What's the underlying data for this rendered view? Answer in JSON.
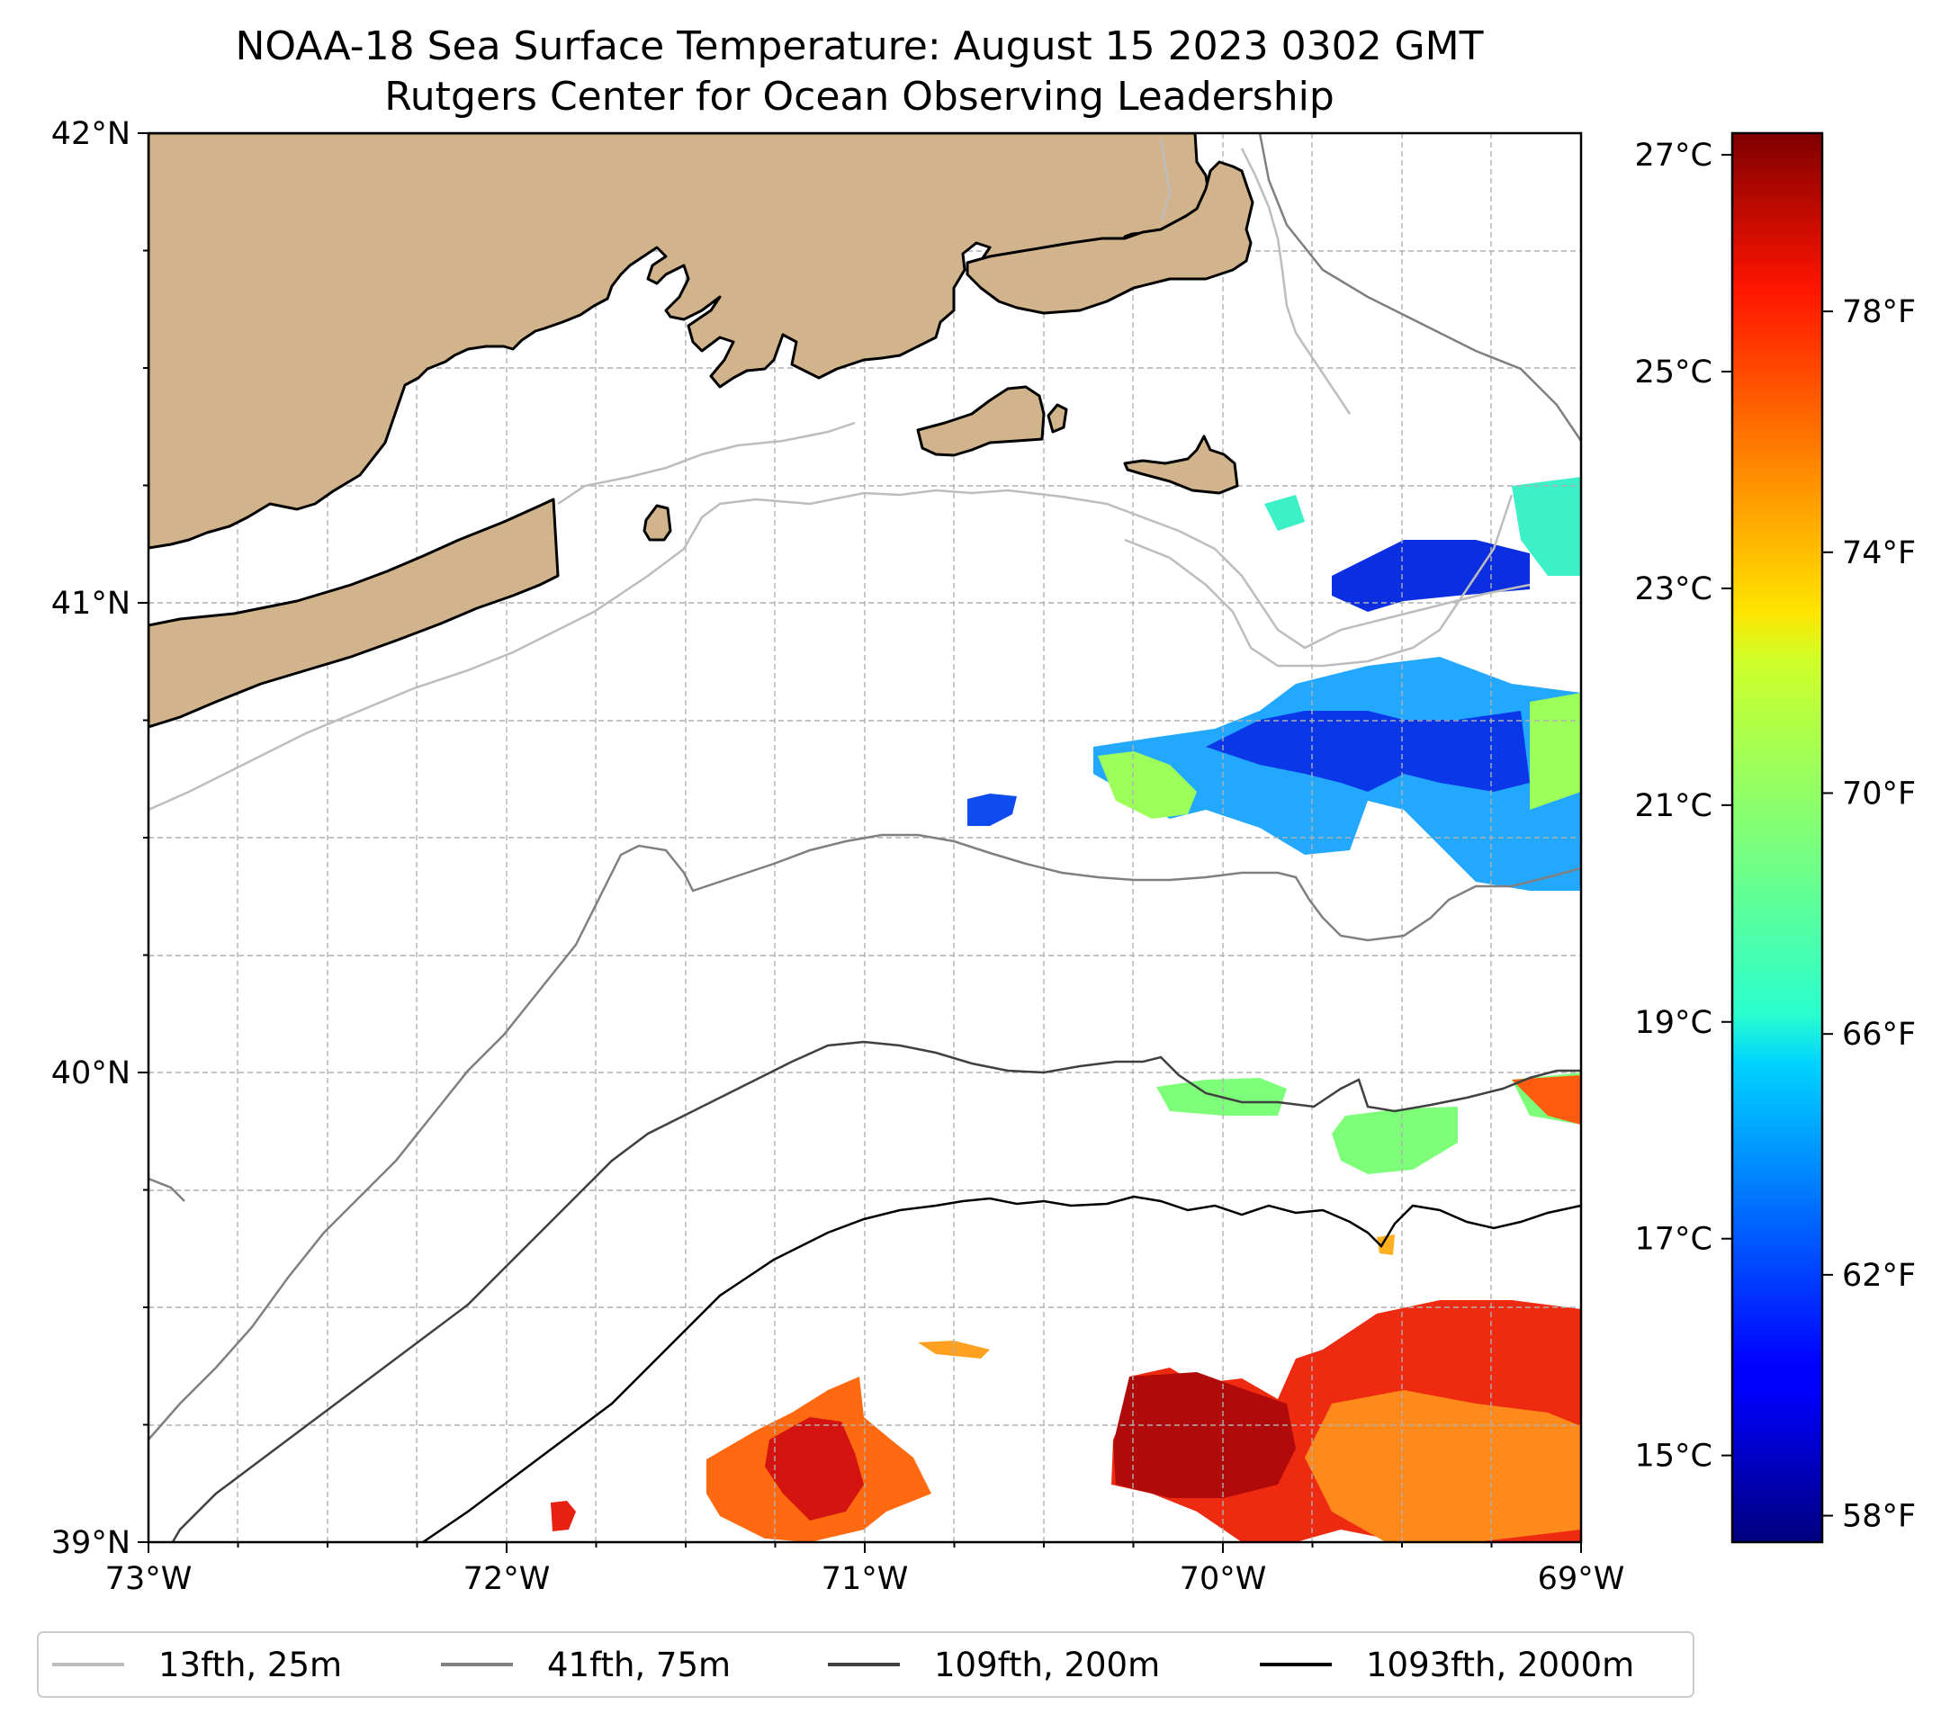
{
  "title": {
    "line1": "NOAA-18 Sea Surface Temperature: August 15 2023 0302 GMT",
    "line2": "Rutgers Center for Ocean Observing Leadership"
  },
  "map": {
    "lon_range": [
      -73,
      -69
    ],
    "lat_range": [
      39,
      42
    ],
    "lon_ticks": [
      {
        "value": -73,
        "label": "73°W"
      },
      {
        "value": -72,
        "label": "72°W"
      },
      {
        "value": -71,
        "label": "71°W"
      },
      {
        "value": -70,
        "label": "70°W"
      },
      {
        "value": -69,
        "label": "69°W"
      }
    ],
    "lat_ticks": [
      {
        "value": 42,
        "label": "42°N"
      },
      {
        "value": 41,
        "label": "41°N"
      },
      {
        "value": 40,
        "label": "40°N"
      },
      {
        "value": 39,
        "label": "39°N"
      }
    ],
    "gridlines": true,
    "land_color": "#d2b48c",
    "coastline_color": "#000000"
  },
  "colorbar": {
    "colormap": "jet",
    "celsius_range": [
      14.2,
      27.2
    ],
    "celsius_ticks": [
      {
        "value": 27,
        "label": "27°C"
      },
      {
        "value": 25,
        "label": "25°C"
      },
      {
        "value": 23,
        "label": "23°C"
      },
      {
        "value": 21,
        "label": "21°C"
      },
      {
        "value": 19,
        "label": "19°C"
      },
      {
        "value": 17,
        "label": "17°C"
      },
      {
        "value": 15,
        "label": "15°C"
      }
    ],
    "fahrenheit_ticks": [
      {
        "value": 78,
        "label": "78°F"
      },
      {
        "value": 74,
        "label": "74°F"
      },
      {
        "value": 70,
        "label": "70°F"
      },
      {
        "value": 66,
        "label": "66°F"
      },
      {
        "value": 62,
        "label": "62°F"
      },
      {
        "value": 58,
        "label": "58°F"
      }
    ]
  },
  "legend": {
    "placement": "bottom",
    "items": [
      {
        "label": "13fth, 25m",
        "color": "#bdbdbd"
      },
      {
        "label": "41fth, 75m",
        "color": "#808080"
      },
      {
        "label": "109fth, 200m",
        "color": "#404040"
      },
      {
        "label": "1093fth, 2000m",
        "color": "#000000"
      }
    ]
  }
}
